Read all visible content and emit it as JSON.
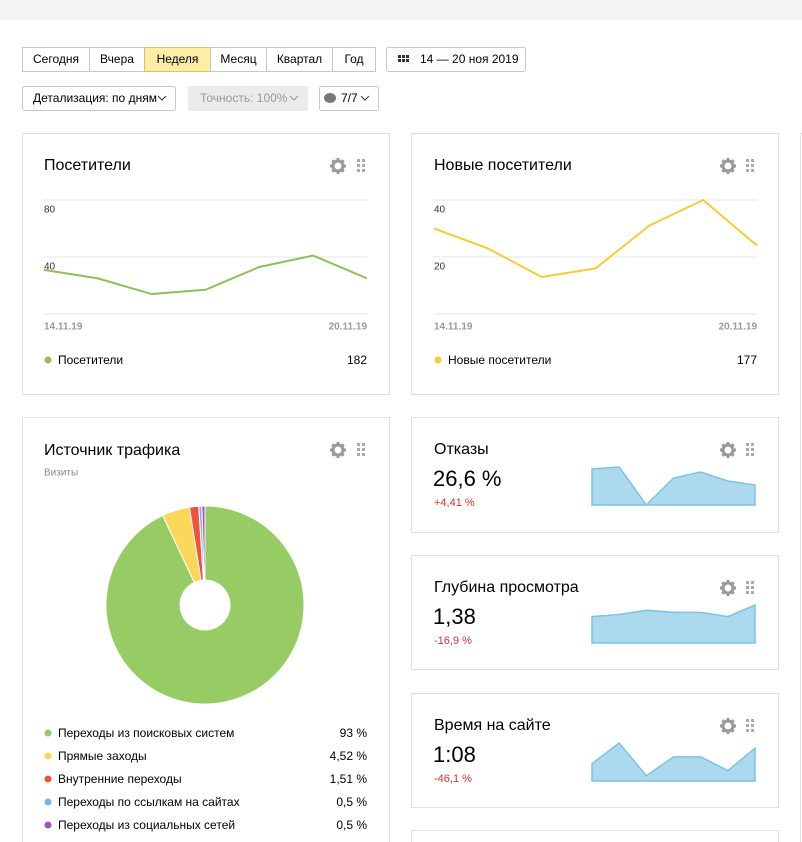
{
  "toolbar": {
    "periods": [
      "Сегодня",
      "Вчера",
      "Неделя",
      "Месяц",
      "Квартал",
      "Год"
    ],
    "active_period": 2,
    "date_range": "14 — 20 ноя 2019",
    "detail": "Детализация: по дням",
    "accuracy": "Точность: 100%",
    "filter": "7/7"
  },
  "visitors": {
    "title": "Посетители",
    "chart_data": {
      "type": "line",
      "x": [
        "14.11.19",
        null,
        null,
        null,
        null,
        null,
        "20.11.19"
      ],
      "ylim": [
        0,
        80
      ],
      "yticks": [
        40,
        80
      ],
      "series": [
        {
          "name": "Посетители",
          "color": "#8dc155",
          "values": [
            31,
            25,
            14,
            17,
            33,
            41,
            25
          ],
          "total": 182
        }
      ]
    }
  },
  "new_visitors": {
    "title": "Новые посетители",
    "chart_data": {
      "type": "line",
      "x": [
        "14.11.19",
        null,
        null,
        null,
        null,
        null,
        "20.11.19"
      ],
      "ylim": [
        0,
        40
      ],
      "yticks": [
        20,
        40
      ],
      "series": [
        {
          "name": "Новые посетители",
          "color": "#f5cd33",
          "values": [
            30,
            23,
            13,
            16,
            31,
            40,
            24
          ],
          "total": 177
        }
      ]
    }
  },
  "traffic": {
    "title": "Источник трафика",
    "subtitle": "Визиты",
    "chart_data": {
      "type": "pie",
      "categories": [
        "Переходы из поисковых систем",
        "Прямые заходы",
        "Внутренние переходы",
        "Переходы по ссылкам на сайтах",
        "Переходы из социальных сетей"
      ],
      "values": [
        93,
        4.52,
        1.51,
        0.5,
        0.5
      ],
      "value_labels": [
        "93 %",
        "4,52 %",
        "1,51 %",
        "0,5 %",
        "0,5 %"
      ],
      "colors": [
        "#97cb63",
        "#fbd75b",
        "#f0533c",
        "#7ab7e6",
        "#a353c1"
      ]
    }
  },
  "metrics": [
    {
      "title": "Отказы",
      "value": "26,6 %",
      "change": "+4,41 %",
      "chart_data": {
        "type": "area",
        "color": "#acd9ee",
        "values": [
          36,
          38,
          0,
          27,
          33,
          24,
          20
        ]
      }
    },
    {
      "title": "Глубина просмотра",
      "value": "1,38",
      "change": "-16,9 %",
      "chart_data": {
        "type": "area",
        "color": "#acd9ee",
        "values": [
          25,
          27,
          31,
          29,
          29,
          25,
          36
        ]
      }
    },
    {
      "title": "Время на сайте",
      "value": "1:08",
      "change": "-46,1 %",
      "chart_data": {
        "type": "area",
        "color": "#acd9ee",
        "values": [
          10,
          22,
          3,
          14,
          14,
          6,
          19
        ]
      }
    }
  ]
}
